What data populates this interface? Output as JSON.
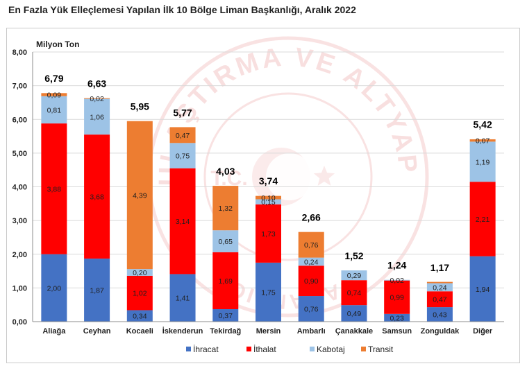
{
  "title": "En Fazla Yük Elleçlemesi Yapılan İlk 10 Bölge Liman Başkanlığı, Aralık 2022",
  "colors": {
    "ihracat": "#4472C4",
    "ithalat": "#FF0000",
    "kabotaj": "#9DC3E6",
    "transit": "#ED7D31",
    "grid": "#d9d9d9",
    "axis": "#8c8c8c"
  },
  "watermark": {
    "text_top": "ULAŞTIRMA VE ALTYAPI",
    "text_left": "T.C.",
    "text_right": "BAKANLIĞI"
  },
  "chart_data": {
    "type": "bar",
    "stacked": true,
    "title": "En Fazla Yük Elleçlemesi Yapılan İlk 10 Bölge Liman Başkanlığı, Aralık 2022",
    "ylabel": "Milyon Ton",
    "xlabel": "",
    "ylim": [
      0,
      8
    ],
    "ytick_step": 1,
    "ytick_labels": [
      "0,00",
      "1,00",
      "2,00",
      "3,00",
      "4,00",
      "5,00",
      "6,00",
      "7,00",
      "8,00"
    ],
    "grid": true,
    "legend_position": "bottom",
    "categories": [
      "Aliağa",
      "Ceyhan",
      "Kocaeli",
      "İskenderun",
      "Tekirdağ",
      "Mersin",
      "Ambarlı",
      "Çanakkale",
      "Samsun",
      "Zonguldak",
      "Diğer"
    ],
    "series": [
      {
        "key": "ihracat",
        "name": "İhracat",
        "values": [
          2.0,
          1.87,
          0.34,
          1.41,
          0.37,
          1.75,
          0.76,
          0.49,
          0.23,
          0.43,
          1.94
        ],
        "labels": [
          "2,00",
          "1,87",
          "0,34",
          "1,41",
          "0,37",
          "1,75",
          "0,76",
          "0,49",
          "0,23",
          "0,43",
          "1,94"
        ]
      },
      {
        "key": "ithalat",
        "name": "İthalat",
        "values": [
          3.88,
          3.68,
          1.02,
          3.14,
          1.69,
          1.73,
          0.9,
          0.74,
          0.99,
          0.47,
          2.21
        ],
        "labels": [
          "3,88",
          "3,68",
          "1,02",
          "3,14",
          "1,69",
          "1,73",
          "0,90",
          "0,74",
          "0,99",
          "0,47",
          "2,21"
        ]
      },
      {
        "key": "kabotaj",
        "name": "Kabotaj",
        "values": [
          0.81,
          1.06,
          0.2,
          0.75,
          0.65,
          0.15,
          0.24,
          0.29,
          0.02,
          0.24,
          1.19
        ],
        "labels": [
          "0,81",
          "1,06",
          "0,20",
          "0,75",
          "0,65",
          "0,15",
          "0,24",
          "0,29",
          "0,02",
          "0,24",
          "1,19"
        ]
      },
      {
        "key": "transit",
        "name": "Transit",
        "values": [
          0.09,
          0.02,
          4.39,
          0.47,
          1.32,
          0.1,
          0.76,
          0.0,
          0.0,
          0.04,
          0.07
        ],
        "labels": [
          "0,09",
          "0,02",
          "4,39",
          "0,47",
          "1,32",
          "0,10",
          "0,76",
          "",
          "",
          "",
          "0,07"
        ]
      }
    ],
    "totals": [
      6.79,
      6.63,
      5.95,
      5.77,
      4.03,
      3.74,
      2.66,
      1.52,
      1.24,
      1.17,
      5.42
    ],
    "total_labels": [
      "6,79",
      "6,63",
      "5,95",
      "5,77",
      "4,03",
      "3,74",
      "2,66",
      "1,52",
      "1,24",
      "1,17",
      "5,42"
    ]
  }
}
